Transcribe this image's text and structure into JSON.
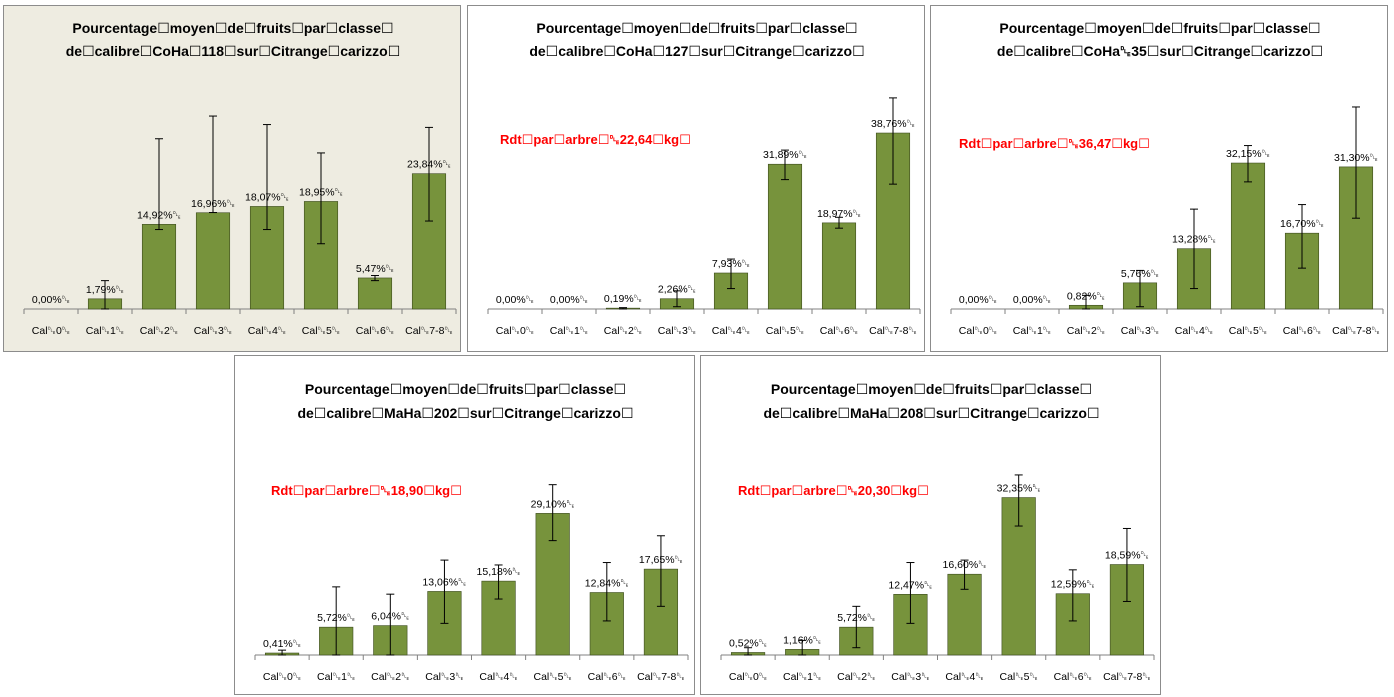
{
  "style": {
    "bar_color": "#77933c",
    "bar_stroke": "#3b4a1d",
    "rdt_color": "#ff0000"
  },
  "chart_data": [
    {
      "type": "bar",
      "title_lines": [
        "Pourcentage☐moyen☐de☐fruits☐par☐classe☐",
        "de☐calibre☐CoHa☐118☐sur☐Citrange☐carizzo☐"
      ],
      "yield_label": "",
      "categories": [
        "Cal␐0␐",
        "Cal␐1␐",
        "Cal␐2␐",
        "Cal␐3␐",
        "Cal␐4␐",
        "Cal␐5␐",
        "Cal␐6␐",
        "Cal␐7-8␐"
      ],
      "values": [
        0.0,
        1.79,
        14.92,
        16.96,
        18.07,
        18.95,
        5.47,
        23.84
      ],
      "value_labels": [
        "0,00%␐",
        "1,79%␐",
        "14,92%␐",
        "16,96%␐",
        "18,07%␐",
        "18,95%␐",
        "5,47%␐",
        "23,84%␐"
      ],
      "error_low": [
        0.0,
        0.0,
        14.0,
        17.0,
        14.0,
        11.5,
        5.0,
        15.5
      ],
      "error_high": [
        0.0,
        5.0,
        30.0,
        34.0,
        32.5,
        27.5,
        5.9,
        32.0
      ],
      "ylim": [
        0,
        40
      ]
    },
    {
      "type": "bar",
      "title_lines": [
        "Pourcentage☐moyen☐de☐fruits☐par☐classe☐",
        "de☐calibre☐CoHa☐127☐sur☐Citrange☐carizzo☐"
      ],
      "yield_label": "Rdt☐par☐arbre☐␐22,64☐kg☐",
      "categories": [
        "Cal␐0␐",
        "Cal␐1␐",
        "Cal␐2␐",
        "Cal␐3␐",
        "Cal␐4␐",
        "Cal␐5␐",
        "Cal␐6␐",
        "Cal␐7-8␐"
      ],
      "values": [
        0.0,
        0.0,
        0.19,
        2.26,
        7.93,
        31.89,
        18.97,
        38.76
      ],
      "value_labels": [
        "0,00%␐",
        "0,00%␐",
        "0,19%␐",
        "2,26%␐",
        "7,93%␐",
        "31,89%␐",
        "18,97%␐",
        "38,76%␐"
      ],
      "error_low": [
        0.0,
        0.0,
        0.0,
        0.5,
        4.5,
        28.5,
        17.8,
        27.5
      ],
      "error_high": [
        0.0,
        0.0,
        0.3,
        4.0,
        11.0,
        35.0,
        20.2,
        46.5
      ],
      "ylim": [
        0,
        50
      ]
    },
    {
      "type": "bar",
      "title_lines": [
        "Pourcentage☐moyen☐de☐fruits☐par☐classe☐",
        "de☐calibre☐CoHa␐35☐sur☐Citrange☐carizzo☐"
      ],
      "yield_label": "Rdt☐par☐arbre☐␐36,47☐kg☐",
      "categories": [
        "Cal␐0␐",
        "Cal␐1␐",
        "Cal␐2␐",
        "Cal␐3␐",
        "Cal␐4␐",
        "Cal␐5␐",
        "Cal␐6␐",
        "Cal␐7-8␐"
      ],
      "values": [
        0.0,
        0.0,
        0.82,
        5.76,
        13.28,
        32.15,
        16.7,
        31.3
      ],
      "value_labels": [
        "0,00%␐",
        "0,00%␐",
        "0,82%␐",
        "5,76%␐",
        "13,28%␐",
        "32,15%␐",
        "16,70%␐",
        "31,30%␐"
      ],
      "error_low": [
        0.0,
        0.0,
        0.0,
        0.5,
        4.5,
        28.0,
        9.0,
        20.0
      ],
      "error_high": [
        0.0,
        0.0,
        3.0,
        8.5,
        22.0,
        36.0,
        23.0,
        44.5
      ],
      "ylim": [
        0,
        50
      ]
    },
    {
      "type": "bar",
      "title_lines": [
        "Pourcentage☐moyen☐de☐fruits☐par☐classe☐",
        "de☐calibre☐MaHa☐202☐sur☐Citrange☐carizzo☐"
      ],
      "yield_label": "Rdt☐par☐arbre☐␐18,90☐kg☐",
      "categories": [
        "Cal␐0␐",
        "Cal␐1␐",
        "Cal␐2␐",
        "Cal␐3␐",
        "Cal␐4␐",
        "Cal␐5␐",
        "Cal␐6␐",
        "Cal␐7-8␐"
      ],
      "values": [
        0.41,
        5.72,
        6.04,
        13.06,
        15.18,
        29.1,
        12.84,
        17.65
      ],
      "value_labels": [
        "0,41%␐",
        "5,72%␐",
        "6,04%␐",
        "13,06%␐",
        "15,18%␐",
        "29,10%␐",
        "12,84%␐",
        "17,65%␐"
      ],
      "error_low": [
        0.0,
        0.0,
        0.0,
        6.5,
        11.5,
        23.5,
        7.0,
        10.0
      ],
      "error_high": [
        1.0,
        14.0,
        12.5,
        19.5,
        18.5,
        35.0,
        19.0,
        24.5
      ],
      "ylim": [
        0,
        45
      ]
    },
    {
      "type": "bar",
      "title_lines": [
        "Pourcentage☐moyen☐de☐fruits☐par☐classe☐",
        "de☐calibre☐MaHa☐208☐sur☐Citrange☐carizzo☐"
      ],
      "yield_label": "Rdt☐par☐arbre☐␐20,30☐kg☐",
      "categories": [
        "Cal␐0␐",
        "Cal␐1␐",
        "Cal␐2␐",
        "Cal␐3␐",
        "Cal␐4␐",
        "Cal␐5␐",
        "Cal␐6␐",
        "Cal␐7-8␐"
      ],
      "values": [
        0.52,
        1.16,
        5.72,
        12.47,
        16.6,
        32.35,
        12.59,
        18.59
      ],
      "value_labels": [
        "0,52%␐",
        "1,16%␐",
        "5,72%␐",
        "12,47%␐",
        "16,60%␐",
        "32,35%␐",
        "12,59%␐",
        "18,59%␐"
      ],
      "error_low": [
        0.0,
        0.0,
        1.5,
        6.5,
        13.5,
        26.5,
        7.0,
        11.0
      ],
      "error_high": [
        1.5,
        3.0,
        10.0,
        19.0,
        19.5,
        37.0,
        17.5,
        26.0
      ],
      "ylim": [
        0,
        45
      ]
    }
  ]
}
